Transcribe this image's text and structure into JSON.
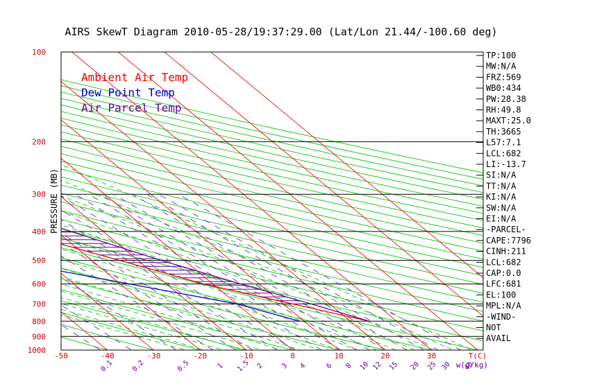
{
  "chart_data": {
    "type": "skewt",
    "title": "AIRS SkewT Diagram 2010-05-28/19:37:29.00 (Lat/Lon 21.44/-100.60 deg)",
    "ylabel": "PRESSURE (MB)",
    "x_unit_label": "T(C)",
    "mixing_unit_label": "w(g/kg)",
    "pressure_ticks": [
      100,
      200,
      300,
      400,
      500,
      600,
      700,
      800,
      900,
      1000
    ],
    "ylim": [
      1000,
      100
    ],
    "top_temp_ticks": [
      -120,
      -110,
      -100,
      -90,
      -80,
      -70,
      -60,
      -50,
      -40
    ],
    "bottom_temp_ticks": [
      -50,
      -40,
      -30,
      -20,
      -10,
      0,
      10,
      20,
      30
    ],
    "mixing_ratio_labels": [
      0.1,
      0.2,
      0.5,
      1,
      1.5,
      2,
      3,
      4,
      6,
      8,
      10,
      12,
      15,
      20,
      25,
      30,
      40
    ],
    "legend": [
      {
        "label": "Ambient Air Temp",
        "color": "#ee0000"
      },
      {
        "label": "Dew Point Temp",
        "color": "#0000cc"
      },
      {
        "label": "Air Parcel Temp",
        "color": "#660099"
      }
    ],
    "series": [
      {
        "name": "Ambient Air Temp",
        "color": "#ee0000",
        "points": [
          [
            100,
            -80
          ],
          [
            150,
            -80
          ],
          [
            200,
            -72
          ],
          [
            250,
            -60
          ],
          [
            300,
            -49
          ],
          [
            400,
            -29
          ],
          [
            500,
            -14
          ],
          [
            600,
            -2
          ],
          [
            700,
            12
          ],
          [
            800,
            24
          ]
        ]
      },
      {
        "name": "Dew Point Temp",
        "color": "#0000cc",
        "points": [
          [
            100,
            -85
          ],
          [
            150,
            -88
          ],
          [
            200,
            -84
          ],
          [
            250,
            -73
          ],
          [
            300,
            -81
          ],
          [
            400,
            -64
          ],
          [
            500,
            -39
          ],
          [
            600,
            -18
          ],
          [
            700,
            0
          ],
          [
            800,
            9
          ]
        ]
      },
      {
        "name": "Air Parcel Temp",
        "color": "#660099",
        "points": [
          [
            100,
            -72
          ],
          [
            150,
            -60
          ],
          [
            200,
            -50
          ],
          [
            250,
            -40
          ],
          [
            300,
            -31
          ],
          [
            400,
            -17
          ],
          [
            500,
            -5
          ],
          [
            600,
            6
          ],
          [
            700,
            16
          ],
          [
            800,
            24
          ]
        ]
      }
    ],
    "cape_shading": {
      "from_pressure": 690,
      "to_pressure": 110,
      "color": "#660099"
    }
  },
  "indices": [
    "TP:100",
    "MW:N/A",
    "FRZ:569",
    "WB0:434",
    "PW:28.38",
    "RH:49.8",
    "MAXT:25.0",
    "TH:3665",
    "L57:7.1",
    "LCL:682",
    "LI:-13.7",
    "SI:N/A",
    "TT:N/A",
    "KI:N/A",
    "SW:N/A",
    "EI:N/A",
    "-PARCEL-",
    "CAPE:7796",
    "CINH:211",
    "LCL:682",
    "CAP:0.0",
    "LFC:681",
    "EL:100",
    "MPL:N/A",
    "-WIND-",
    "NOT",
    "AVAIL"
  ],
  "colors": {
    "isotherm": "#ee2222",
    "dry_adiabat": "#22cc22",
    "moist_adiabat": "#22cc22",
    "mixing_ratio": "#7744bb",
    "isobar": "#000000",
    "tick_label": "#cc0000",
    "mixing_label": "#660099"
  }
}
